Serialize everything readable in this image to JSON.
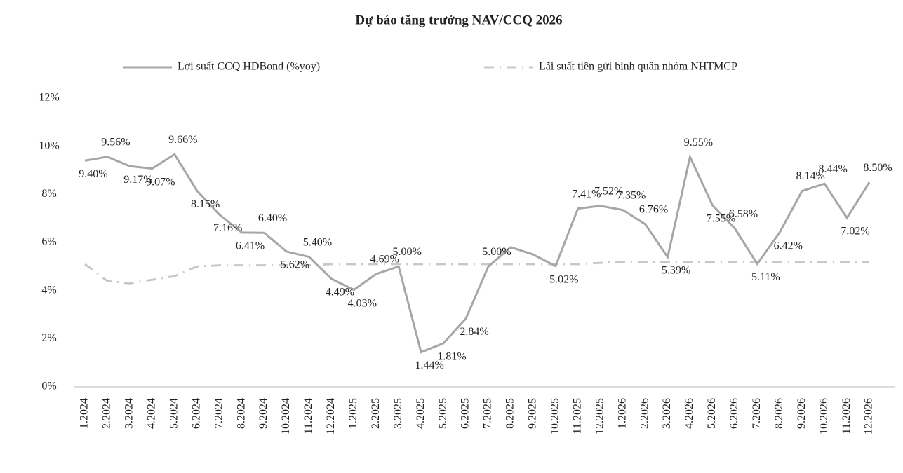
{
  "chart_data": {
    "type": "line",
    "title": "Dự báo tăng trưởng NAV/CCQ 2026",
    "categories": [
      "1.2024",
      "2.2024",
      "3.2024",
      "4.2024",
      "5.2024",
      "6.2024",
      "7.2024",
      "8.2024",
      "9.2024",
      "10.2024",
      "11.2024",
      "12.2024",
      "1.2025",
      "2.2025",
      "3.2025",
      "4.2025",
      "5.2025",
      "6.2025",
      "7.2025",
      "8.2025",
      "9.2025",
      "10.2025",
      "11.2025",
      "12.2025",
      "1.2026",
      "2.2026",
      "3.2026",
      "4.2026",
      "5.2026",
      "6.2026",
      "7.2026",
      "8.2026",
      "9.2026",
      "10.2026",
      "11.2026",
      "12.2026"
    ],
    "series": [
      {
        "name": "Lợi suất CCQ HDBond (%yoy)",
        "color": "#a6a6a6",
        "style": "solid",
        "values": [
          9.4,
          9.56,
          9.17,
          9.07,
          9.66,
          8.15,
          7.16,
          6.41,
          6.4,
          5.62,
          5.4,
          4.49,
          4.03,
          4.69,
          5.0,
          1.44,
          1.81,
          2.84,
          5.0,
          5.8,
          5.5,
          5.02,
          7.41,
          7.52,
          7.35,
          6.76,
          5.39,
          9.55,
          7.55,
          6.58,
          5.11,
          6.42,
          8.14,
          8.44,
          7.02,
          8.5
        ],
        "value_labels": [
          "9.40%",
          "9.56%",
          "9.17%",
          "9.07%",
          "9.66%",
          "8.15%",
          "7.16%",
          "6.41%",
          "6.40%",
          "5.62%",
          "5.40%",
          "4.49%",
          "4.03%",
          "4.69%",
          "5.00%",
          "1.44%",
          "1.81%",
          "2.84%",
          "5.00%",
          null,
          null,
          "5.02%",
          "7.41%",
          "7.52%",
          "7.35%",
          "6.76%",
          "5.39%",
          "9.55%",
          "7.55%",
          "6.58%",
          "5.11%",
          "6.42%",
          "8.14%",
          "8.44%",
          "7.02%",
          "8.50%"
        ]
      },
      {
        "name": "Lãi suất tiền gửi bình quân nhóm NHTMCP",
        "color": "#c8c8c8",
        "style": "dashdot",
        "values": [
          5.1,
          4.4,
          4.3,
          4.45,
          4.6,
          5.0,
          5.05,
          5.05,
          5.05,
          5.05,
          5.05,
          5.1,
          5.1,
          5.1,
          5.1,
          5.1,
          5.1,
          5.1,
          5.1,
          5.1,
          5.1,
          5.1,
          5.1,
          5.15,
          5.2,
          5.2,
          5.2,
          5.2,
          5.2,
          5.2,
          5.2,
          5.2,
          5.2,
          5.2,
          5.2,
          5.2
        ]
      }
    ],
    "ylim": [
      0,
      12
    ],
    "yticks": [
      {
        "value": 0,
        "label": "0%"
      },
      {
        "value": 2,
        "label": "2%"
      },
      {
        "value": 4,
        "label": "4%"
      },
      {
        "value": 6,
        "label": "6%"
      },
      {
        "value": 8,
        "label": "8%"
      },
      {
        "value": 10,
        "label": "10%"
      },
      {
        "value": 12,
        "label": "12%"
      }
    ],
    "legend": "top"
  }
}
